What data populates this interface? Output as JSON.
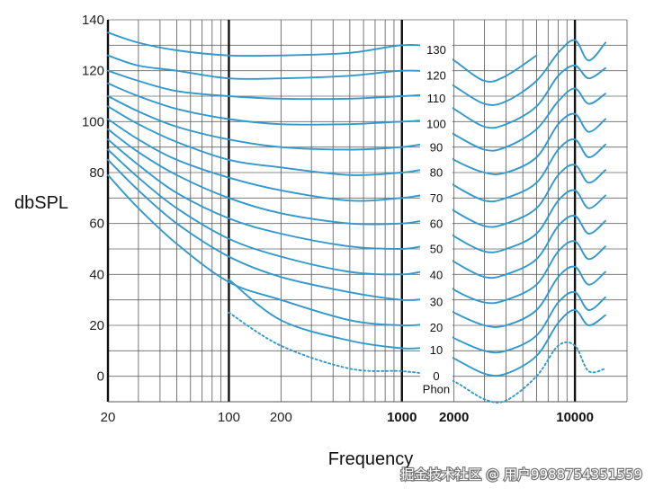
{
  "chart_data": {
    "type": "line",
    "title": "",
    "xlabel": "Frequency",
    "ylabel": "dbSPL",
    "x_scale": "log",
    "xlim": [
      20,
      20000
    ],
    "ylim": [
      -10,
      140
    ],
    "x_tick_labels": [
      "20",
      "100",
      "200",
      "1000",
      "2000",
      "10000"
    ],
    "y_tick_labels": [
      "0",
      "20",
      "40",
      "60",
      "80",
      "100",
      "120",
      "140"
    ],
    "curve_unit_label": "Phon",
    "x": [
      20,
      30,
      50,
      100,
      200,
      500,
      1000,
      1500,
      2000,
      3000,
      4000,
      6000,
      8000,
      10000,
      12000,
      15000
    ],
    "series": [
      {
        "name": "0",
        "dashed": true,
        "values": [
          null,
          null,
          null,
          25,
          12,
          3,
          2,
          0.5,
          -2,
          -9,
          -9.5,
          0,
          12,
          12,
          2,
          3
        ]
      },
      {
        "name": "10",
        "values": [
          null,
          null,
          null,
          38,
          22,
          14,
          11,
          11,
          7,
          1,
          1,
          8,
          21,
          26,
          20,
          24
        ]
      },
      {
        "name": "20",
        "values": [
          79,
          66,
          52,
          37,
          30,
          22,
          20,
          20,
          15,
          10,
          10,
          16,
          29,
          33,
          26,
          31
        ]
      },
      {
        "name": "30",
        "values": [
          85,
          73,
          60,
          47,
          39,
          33,
          30,
          30,
          25,
          20,
          20,
          26,
          39,
          43,
          36,
          41
        ]
      },
      {
        "name": "40",
        "values": [
          89,
          78,
          66,
          54,
          47,
          41,
          40,
          41,
          34,
          29,
          30,
          36,
          49,
          53,
          46,
          51
        ]
      },
      {
        "name": "50",
        "values": [
          93,
          83,
          72,
          62,
          56,
          51,
          50,
          51,
          45,
          39,
          40,
          46,
          59,
          63,
          56,
          61
        ]
      },
      {
        "name": "60",
        "values": [
          97,
          88,
          79,
          70,
          64,
          60,
          60,
          61,
          55,
          49,
          50,
          56,
          69,
          73,
          66,
          71
        ]
      },
      {
        "name": "70",
        "values": [
          101,
          93,
          85,
          78,
          73,
          69,
          70,
          71,
          65,
          59,
          60,
          66,
          79,
          83,
          76,
          81
        ]
      },
      {
        "name": "80",
        "values": [
          106,
          99,
          92,
          85,
          82,
          79,
          80,
          81,
          75,
          69,
          70,
          76,
          89,
          93,
          86,
          91
        ]
      },
      {
        "name": "90",
        "values": [
          110,
          104,
          98,
          93,
          90,
          89,
          90,
          91,
          85,
          80,
          80,
          86,
          99,
          103,
          96,
          101
        ]
      },
      {
        "name": "100",
        "values": [
          115,
          110,
          105,
          101,
          99,
          99,
          100,
          100,
          95,
          89,
          90,
          97,
          108,
          113,
          107,
          111
        ]
      },
      {
        "name": "110",
        "values": [
          120,
          116,
          112,
          110,
          109,
          109,
          110,
          110,
          105,
          98,
          99,
          106,
          118,
          122,
          117,
          121
        ]
      },
      {
        "name": "120",
        "values": [
          126,
          122,
          120,
          117,
          117,
          118,
          120,
          119,
          114,
          107,
          108,
          116,
          127,
          132,
          124,
          131
        ]
      },
      {
        "name": "130",
        "values": [
          135,
          131,
          128,
          126,
          126,
          127,
          130,
          129,
          124,
          116,
          118,
          126,
          null,
          null,
          null,
          null
        ]
      }
    ]
  }
}
